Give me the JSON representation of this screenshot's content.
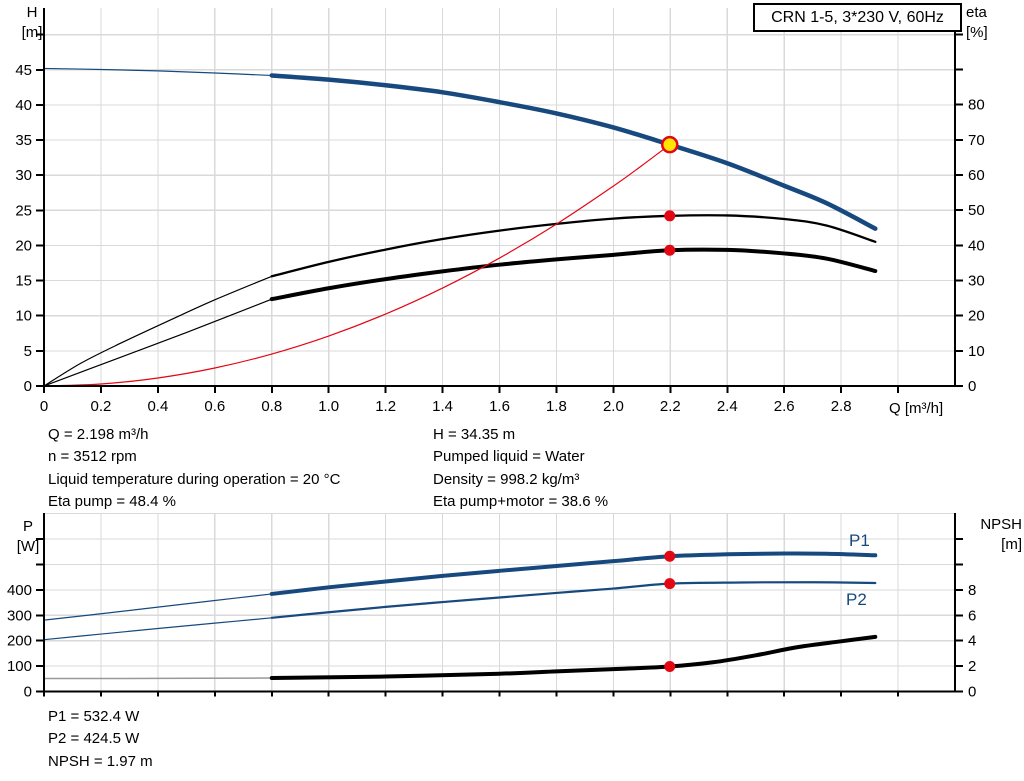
{
  "model_box": {
    "label": "CRN 1-5, 3*230 V, 60Hz"
  },
  "axis_titles": {
    "h_line1": "H",
    "h_line2": "[m]",
    "eta_line1": "eta",
    "eta_line2": "[%]",
    "q_label": "Q [m³/h]",
    "p_line1": "P",
    "p_line2": "[W]",
    "npsh_line1": "NPSH",
    "npsh_line2": "[m]"
  },
  "curve_labels": {
    "p1": "P1",
    "p2": "P2"
  },
  "operating_data": {
    "left": [
      "Q = 2.198 m³/h",
      "n = 3512 rpm",
      "Liquid temperature during operation = 20 °C",
      "Eta pump = 48.4 %"
    ],
    "right": [
      "H = 34.35 m",
      "Pumped liquid = Water",
      "Density = 998.2 kg/m³",
      "Eta pump+motor = 38.6 %"
    ]
  },
  "power_data": {
    "lines": [
      "P1 = 532.4 W",
      "P2 = 424.5 W",
      "NPSH = 1.97 m"
    ]
  },
  "colors": {
    "blue": "#17497f",
    "black": "#000000",
    "red": "#e30613",
    "yellow": "#ffe500",
    "grid": "#d9d9d9",
    "axis": "#000000",
    "npsh_gray": "#999999"
  },
  "chart_data": [
    {
      "type": "line",
      "name": "head-efficiency-chart",
      "x_axis": {
        "label": "Q [m³/h]",
        "min": 0,
        "max": 3.2,
        "grid_values": [
          0.2,
          0.4,
          0.6,
          0.8,
          1.0,
          1.2,
          1.4,
          1.6,
          1.8,
          2.0,
          2.2,
          2.4,
          2.6,
          2.8,
          3.0
        ],
        "tick_values": [
          0,
          0.2,
          0.4,
          0.6,
          0.8,
          1.0,
          1.2,
          1.4,
          1.6,
          1.8,
          2.0,
          2.2,
          2.4,
          2.6,
          2.8
        ],
        "tick_labels": [
          "0",
          "0.2",
          "0.4",
          "0.6",
          "0.8",
          "1.0",
          "1.2",
          "1.4",
          "1.6",
          "1.8",
          "2.0",
          "2.2",
          "2.4",
          "2.6",
          "2.8"
        ],
        "unlabeled_tick_values": [
          3.0
        ]
      },
      "y_left": {
        "label": "H [m]",
        "min": 0,
        "max": 53.8,
        "tick_values": [
          0,
          5,
          10,
          15,
          20,
          25,
          30,
          35,
          40,
          45
        ],
        "unlabeled_tick_values": [
          50
        ],
        "grid_values": [
          5,
          10,
          15,
          20,
          25,
          30,
          35,
          40,
          45,
          50
        ]
      },
      "y_right": {
        "label": "eta [%]",
        "min": 0,
        "max": 107.5,
        "tick_values": [
          0,
          10,
          20,
          30,
          40,
          50,
          60,
          70,
          80
        ],
        "unlabeled_tick_values": [
          90,
          100
        ]
      },
      "series": [
        {
          "name": "head-curve-thin",
          "axis": "left",
          "color": "#17497f",
          "width": 1.2,
          "points": [
            [
              0,
              45.2
            ],
            [
              0.2,
              45.05
            ],
            [
              0.4,
              44.85
            ],
            [
              0.6,
              44.55
            ],
            [
              0.8,
              44.2
            ]
          ]
        },
        {
          "name": "head-curve",
          "axis": "left",
          "color": "#17497f",
          "width": 4.5,
          "points": [
            [
              0.8,
              44.2
            ],
            [
              1.0,
              43.6
            ],
            [
              1.2,
              42.8
            ],
            [
              1.4,
              41.8
            ],
            [
              1.6,
              40.4
            ],
            [
              1.8,
              38.8
            ],
            [
              2.0,
              36.8
            ],
            [
              2.198,
              34.35
            ],
            [
              2.4,
              31.7
            ],
            [
              2.6,
              28.5
            ],
            [
              2.75,
              26.0
            ],
            [
              2.92,
              22.4
            ]
          ]
        },
        {
          "name": "eta-pump-curve-thin",
          "axis": "right",
          "color": "#000000",
          "width": 1.2,
          "points": [
            [
              0,
              0
            ],
            [
              0.13,
              6.5
            ],
            [
              0.27,
              12.2
            ],
            [
              0.45,
              19.0
            ],
            [
              0.6,
              24.5
            ],
            [
              0.8,
              31.2
            ]
          ]
        },
        {
          "name": "eta-pump-curve",
          "axis": "right",
          "color": "#000000",
          "width": 2.3,
          "points": [
            [
              0.8,
              31.2
            ],
            [
              1.0,
              35.3
            ],
            [
              1.2,
              38.8
            ],
            [
              1.4,
              41.8
            ],
            [
              1.6,
              44.2
            ],
            [
              1.8,
              46.1
            ],
            [
              2.0,
              47.6
            ],
            [
              2.198,
              48.4
            ],
            [
              2.4,
              48.5
            ],
            [
              2.6,
              47.5
            ],
            [
              2.75,
              45.6
            ],
            [
              2.92,
              41.0
            ]
          ]
        },
        {
          "name": "eta-pump-motor-curve-thin",
          "axis": "right",
          "color": "#000000",
          "width": 1.2,
          "points": [
            [
              0,
              0
            ],
            [
              0.27,
              8.2
            ],
            [
              0.5,
              15.2
            ],
            [
              0.8,
              24.7
            ]
          ]
        },
        {
          "name": "eta-pump-motor-curve",
          "axis": "right",
          "color": "#000000",
          "width": 4,
          "points": [
            [
              0.8,
              24.7
            ],
            [
              1.0,
              27.8
            ],
            [
              1.2,
              30.4
            ],
            [
              1.4,
              32.6
            ],
            [
              1.6,
              34.5
            ],
            [
              1.8,
              36.0
            ],
            [
              2.0,
              37.3
            ],
            [
              2.198,
              38.6
            ],
            [
              2.4,
              38.7
            ],
            [
              2.6,
              37.7
            ],
            [
              2.75,
              36.2
            ],
            [
              2.92,
              32.7
            ]
          ]
        },
        {
          "name": "system-curve",
          "axis": "left",
          "color": "#e30613",
          "width": 1.2,
          "points": [
            [
              0,
              0
            ],
            [
              0.2,
              0.28
            ],
            [
              0.4,
              1.14
            ],
            [
              0.6,
              2.56
            ],
            [
              0.8,
              4.55
            ],
            [
              1.0,
              7.11
            ],
            [
              1.2,
              10.24
            ],
            [
              1.4,
              13.94
            ],
            [
              1.6,
              18.21
            ],
            [
              1.8,
              23.04
            ],
            [
              2.0,
              28.45
            ],
            [
              2.1,
              31.37
            ],
            [
              2.198,
              34.35
            ]
          ]
        }
      ],
      "markers": [
        {
          "name": "duty-point",
          "axis": "left",
          "q": 2.198,
          "value": 34.35,
          "style": "duty"
        },
        {
          "name": "eta-pump-point",
          "axis": "right",
          "q": 2.198,
          "value": 48.4,
          "style": "dot"
        },
        {
          "name": "eta-pump-motor-point",
          "axis": "right",
          "q": 2.198,
          "value": 38.6,
          "style": "dot"
        }
      ]
    },
    {
      "type": "line",
      "name": "power-npsh-chart",
      "x_axis": {
        "label": "",
        "min": 0,
        "max": 3.2,
        "grid_values": [
          0.2,
          0.4,
          0.6,
          0.8,
          1.0,
          1.2,
          1.4,
          1.6,
          1.8,
          2.0,
          2.2,
          2.4,
          2.6,
          2.8,
          3.0
        ],
        "tick_values": [],
        "tick_labels": [],
        "unlabeled_tick_values": [
          0,
          0.2,
          0.4,
          0.6,
          0.8,
          1.0,
          1.2,
          1.4,
          1.6,
          1.8,
          2.0,
          2.2,
          2.4,
          2.6,
          2.8,
          3.0
        ]
      },
      "y_left": {
        "label": "P [W]",
        "min": 0,
        "max": 702.5,
        "tick_values": [
          0,
          100,
          200,
          300,
          400
        ],
        "unlabeled_tick_values": [
          500,
          600
        ],
        "grid_values": [
          100,
          200,
          300,
          400,
          500,
          600,
          700
        ]
      },
      "y_right": {
        "label": "NPSH [m]",
        "min": 0,
        "max": 14.05,
        "tick_values": [
          0,
          2,
          4,
          6,
          8
        ],
        "unlabeled_tick_values": [
          10,
          12
        ]
      },
      "series": [
        {
          "name": "p1-curve-thin",
          "axis": "left",
          "color": "#17497f",
          "width": 1.2,
          "points": [
            [
              0,
              281
            ],
            [
              0.2,
              306
            ],
            [
              0.4,
              332
            ],
            [
              0.6,
              358
            ],
            [
              0.8,
              384
            ]
          ]
        },
        {
          "name": "p1-curve",
          "axis": "left",
          "color": "#17497f",
          "width": 4,
          "points": [
            [
              0.8,
              384
            ],
            [
              1.0,
              410
            ],
            [
              1.2,
              433
            ],
            [
              1.4,
              455
            ],
            [
              1.6,
              475
            ],
            [
              1.8,
              494
            ],
            [
              2.0,
              513
            ],
            [
              2.198,
              532.4
            ],
            [
              2.4,
              540
            ],
            [
              2.6,
              543
            ],
            [
              2.75,
              542
            ],
            [
              2.92,
              536
            ]
          ]
        },
        {
          "name": "p2-curve-thin",
          "axis": "left",
          "color": "#17497f",
          "width": 1.2,
          "points": [
            [
              0,
              204
            ],
            [
              0.2,
              226
            ],
            [
              0.4,
              248
            ],
            [
              0.6,
              269
            ],
            [
              0.8,
              290
            ]
          ]
        },
        {
          "name": "p2-curve",
          "axis": "left",
          "color": "#17497f",
          "width": 2.2,
          "points": [
            [
              0.8,
              290
            ],
            [
              1.0,
              312
            ],
            [
              1.2,
              333
            ],
            [
              1.4,
              352
            ],
            [
              1.6,
              370
            ],
            [
              1.8,
              388
            ],
            [
              2.0,
              405
            ],
            [
              2.198,
              424.5
            ],
            [
              2.45,
              429
            ],
            [
              2.7,
              430
            ],
            [
              2.92,
              427
            ]
          ]
        },
        {
          "name": "npsh-curve-thin",
          "axis": "right",
          "color": "#999999",
          "width": 1.5,
          "points": [
            [
              0,
              1.02
            ],
            [
              0.4,
              1.03
            ],
            [
              0.8,
              1.06
            ]
          ]
        },
        {
          "name": "npsh-curve",
          "axis": "right",
          "color": "#000000",
          "width": 4,
          "points": [
            [
              0.8,
              1.06
            ],
            [
              1.2,
              1.18
            ],
            [
              1.6,
              1.4
            ],
            [
              1.8,
              1.58
            ],
            [
              2.0,
              1.76
            ],
            [
              2.198,
              1.97
            ],
            [
              2.35,
              2.3
            ],
            [
              2.5,
              2.85
            ],
            [
              2.65,
              3.5
            ],
            [
              2.8,
              3.95
            ],
            [
              2.92,
              4.3
            ]
          ]
        }
      ],
      "markers": [
        {
          "name": "p1-point",
          "axis": "left",
          "q": 2.198,
          "value": 532.4,
          "style": "dot"
        },
        {
          "name": "p2-point",
          "axis": "left",
          "q": 2.198,
          "value": 424.5,
          "style": "dot"
        },
        {
          "name": "npsh-point",
          "axis": "right",
          "q": 2.198,
          "value": 1.97,
          "style": "dot"
        }
      ]
    }
  ]
}
